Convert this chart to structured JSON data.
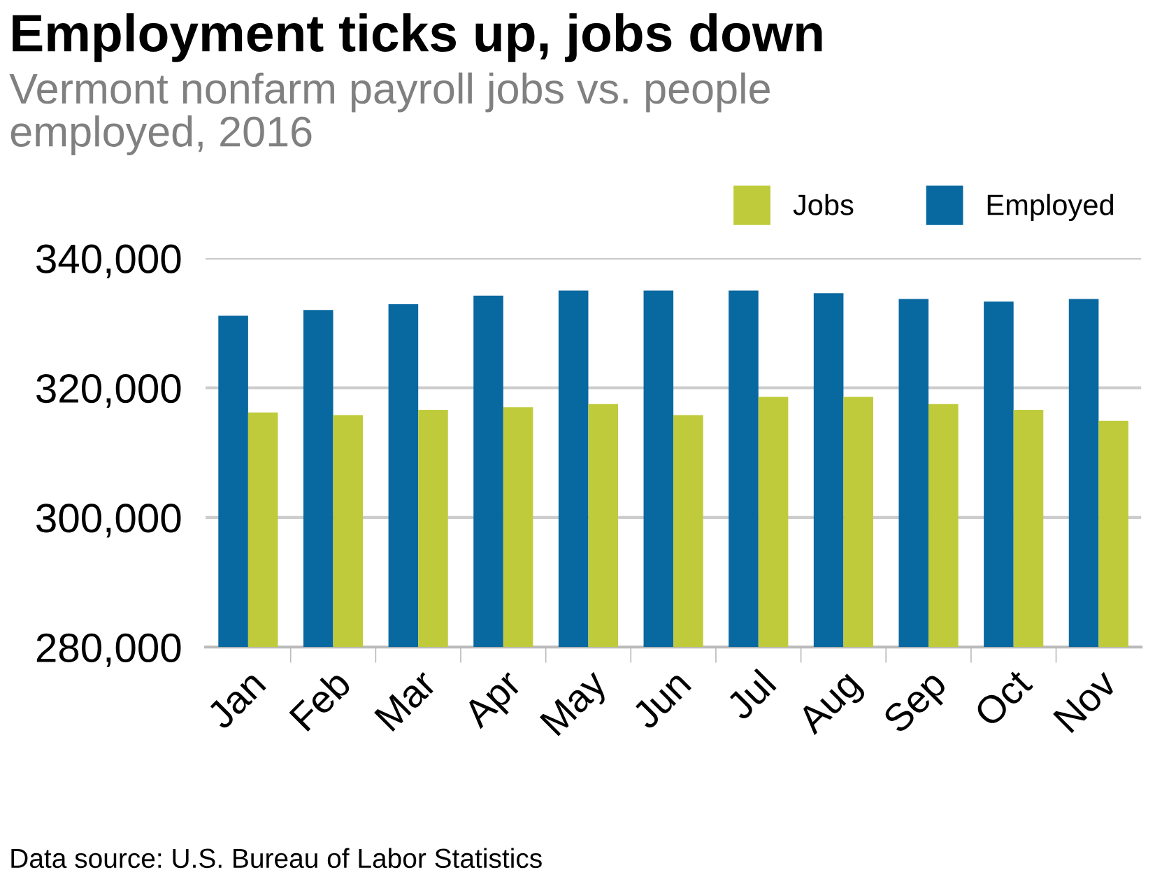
{
  "chart_data": {
    "type": "bar",
    "title": "Employment ticks up, jobs down",
    "subtitle": "Vermont nonfarm payroll jobs vs. people\nemployed, 2016",
    "categories": [
      "Jan",
      "Feb",
      "Mar",
      "Apr",
      "May",
      "Jun",
      "Jul",
      "Aug",
      "Sep",
      "Oct",
      "Nov"
    ],
    "series": [
      {
        "name": "Employed",
        "color": "#0868a0",
        "values": [
          331100,
          332000,
          332900,
          334200,
          335000,
          335000,
          335000,
          334600,
          333700,
          333300,
          333700
        ]
      },
      {
        "name": "Jobs",
        "color": "#c0cb3c",
        "values": [
          316200,
          315800,
          316600,
          317000,
          317500,
          315800,
          318600,
          318600,
          317500,
          316600,
          314900
        ]
      }
    ],
    "ylim": [
      280000,
      340000
    ],
    "yticks": [
      {
        "value": 280000,
        "label": "280,000"
      },
      {
        "value": 300000,
        "label": "300,000"
      },
      {
        "value": 320000,
        "label": "320,000"
      },
      {
        "value": 340000,
        "label": "340,000"
      }
    ],
    "grid": "y",
    "legend": "top right",
    "annotations": [
      "Data source: U.S. Bureau of Labor Statistics"
    ]
  }
}
